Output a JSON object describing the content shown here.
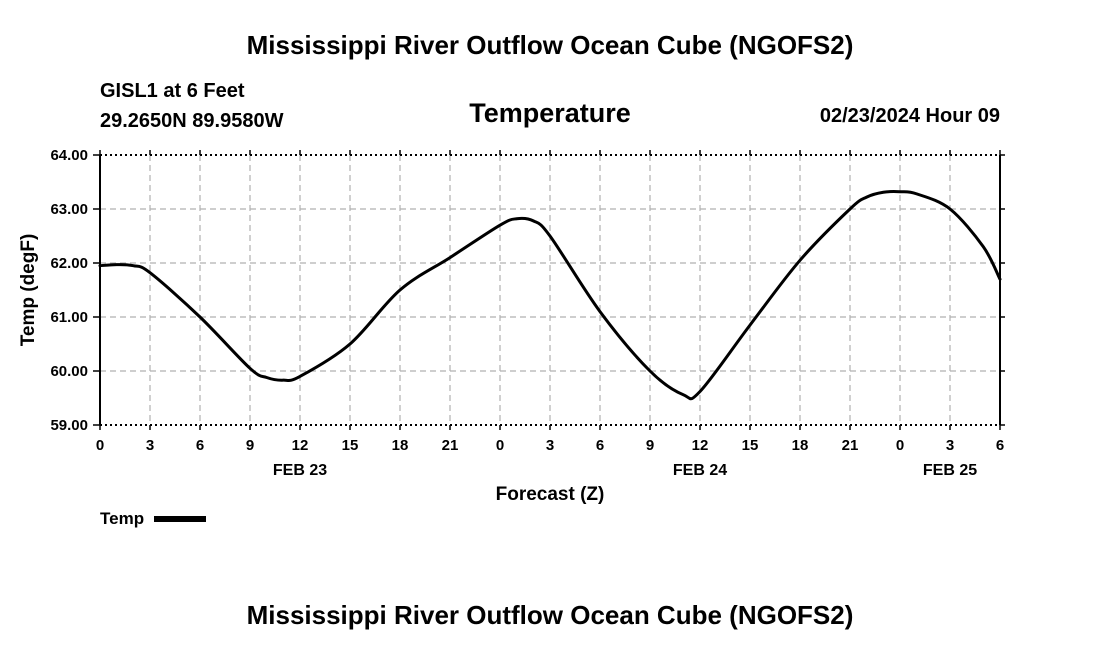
{
  "header": {
    "title": "Mississippi River Outflow Ocean Cube (NGOFS2)",
    "footer_title": "Mississippi River Outflow Ocean Cube (NGOFS2)",
    "station_line": "GISL1 at 6 Feet",
    "coords_line": "29.2650N  89.9580W",
    "datetime": "02/23/2024 Hour 09"
  },
  "chart_data": {
    "type": "line",
    "title": "Temperature",
    "xlabel": "Forecast (Z)",
    "ylabel": "Temp (degF)",
    "ylim": [
      59.0,
      64.0
    ],
    "xlim": [
      0,
      54
    ],
    "y_ticks": [
      {
        "value": 59.0,
        "label": "59.00"
      },
      {
        "value": 60.0,
        "label": "60.00"
      },
      {
        "value": 61.0,
        "label": "61.00"
      },
      {
        "value": 62.0,
        "label": "62.00"
      },
      {
        "value": 63.0,
        "label": "63.00"
      },
      {
        "value": 64.0,
        "label": "64.00"
      }
    ],
    "x_ticks": [
      {
        "value": 0,
        "label": "0"
      },
      {
        "value": 3,
        "label": "3"
      },
      {
        "value": 6,
        "label": "6"
      },
      {
        "value": 9,
        "label": "9"
      },
      {
        "value": 12,
        "label": "12"
      },
      {
        "value": 15,
        "label": "15"
      },
      {
        "value": 18,
        "label": "18"
      },
      {
        "value": 21,
        "label": "21"
      },
      {
        "value": 24,
        "label": "0"
      },
      {
        "value": 27,
        "label": "3"
      },
      {
        "value": 30,
        "label": "6"
      },
      {
        "value": 33,
        "label": "9"
      },
      {
        "value": 36,
        "label": "12"
      },
      {
        "value": 39,
        "label": "15"
      },
      {
        "value": 42,
        "label": "18"
      },
      {
        "value": 45,
        "label": "21"
      },
      {
        "value": 48,
        "label": "0"
      },
      {
        "value": 51,
        "label": "3"
      },
      {
        "value": 54,
        "label": "6"
      }
    ],
    "date_labels": [
      {
        "value": 12,
        "label": "FEB 23"
      },
      {
        "value": 36,
        "label": "FEB 24"
      },
      {
        "value": 51,
        "label": "FEB 25"
      }
    ],
    "grid": true,
    "legend": {
      "position": "bottom-left",
      "entries": [
        "Temp"
      ]
    },
    "series": [
      {
        "name": "Temp",
        "x": [
          0,
          1,
          2,
          3,
          6,
          9,
          10,
          11,
          12,
          15,
          18,
          21,
          24,
          25,
          26,
          27,
          30,
          33,
          35,
          36,
          39,
          42,
          45,
          46,
          47,
          48,
          49,
          51,
          53,
          54
        ],
        "y": [
          61.95,
          61.97,
          61.95,
          61.82,
          61.0,
          60.05,
          59.88,
          59.83,
          59.9,
          60.5,
          61.5,
          62.1,
          62.7,
          62.82,
          62.78,
          62.5,
          61.1,
          60.0,
          59.56,
          59.62,
          60.85,
          62.05,
          63.0,
          63.22,
          63.31,
          63.32,
          63.28,
          63.0,
          62.3,
          61.7
        ]
      }
    ]
  }
}
